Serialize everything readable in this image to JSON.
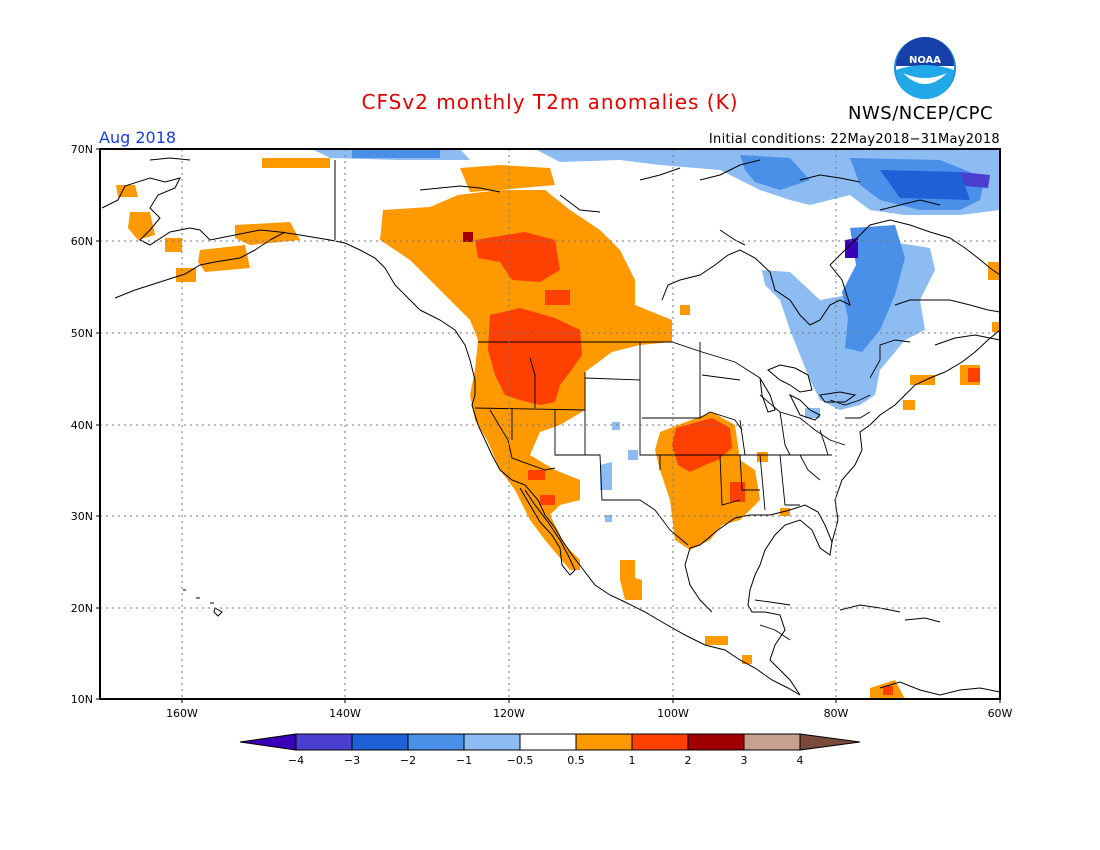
{
  "title": "CFSv2 monthly T2m anomalies (K)",
  "agency": "NWS/NCEP/CPC",
  "logo_text": "NOAA",
  "valid_month": "Aug 2018",
  "initial_conditions": "Initial conditions: 22May2018−31May2018",
  "axes": {
    "lat_labels": [
      "70N",
      "60N",
      "50N",
      "40N",
      "30N",
      "20N",
      "10N"
    ],
    "lon_labels": [
      "160W",
      "140W",
      "120W",
      "100W",
      "80W",
      "60W"
    ]
  },
  "colorbar": {
    "labels": [
      "−4",
      "−3",
      "−2",
      "−1",
      "−0.5",
      "0.5",
      "1",
      "2",
      "3",
      "4"
    ],
    "colors": [
      "#3a00b8",
      "#4b3fd0",
      "#2060d6",
      "#4a90e8",
      "#8cbcf2",
      "#ffffff",
      "#ff9900",
      "#ff4000",
      "#a00000",
      "#c8a090",
      "#7a4a3a"
    ]
  }
}
